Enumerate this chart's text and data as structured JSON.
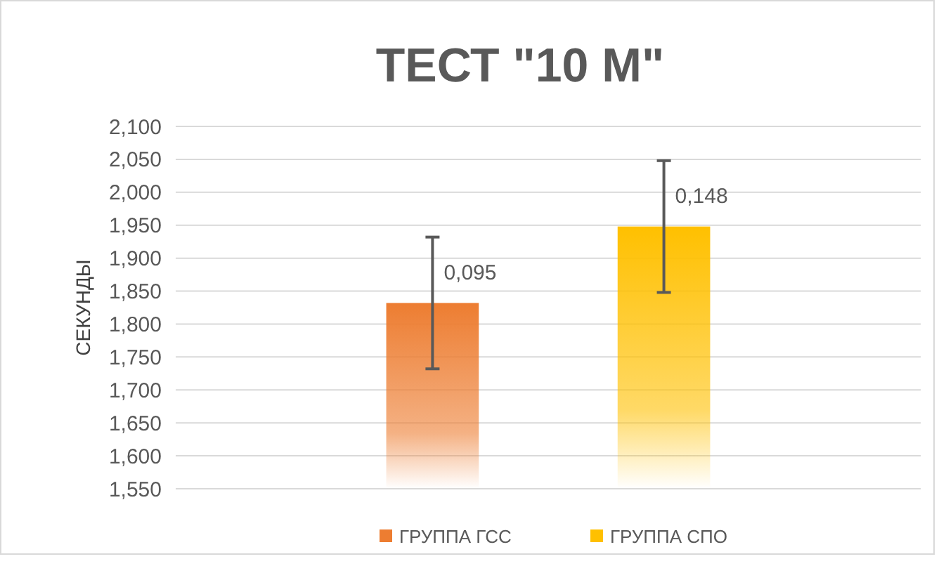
{
  "chart_data": {
    "type": "bar",
    "title": "ТЕСТ \"10 М\"",
    "ylabel": "СЕКУНДЫ",
    "categories": [
      null
    ],
    "series": [
      {
        "name": "ГРУППА  ГСС",
        "color": "#ed7d31",
        "values": [
          1.832
        ],
        "errors": [
          0.1
        ]
      },
      {
        "name": "ГРУППА СПО",
        "color": "#ffc000",
        "values": [
          1.948
        ],
        "errors": [
          0.1
        ]
      }
    ],
    "annotations": [
      "0,095",
      "0,148"
    ],
    "ylim": [
      1.55,
      2.1
    ],
    "yticks": [
      {
        "value": 1.55,
        "label": "1,550"
      },
      {
        "value": 1.6,
        "label": "1,600"
      },
      {
        "value": 1.65,
        "label": "1,650"
      },
      {
        "value": 1.7,
        "label": "1,700"
      },
      {
        "value": 1.75,
        "label": "1,750"
      },
      {
        "value": 1.8,
        "label": "1,800"
      },
      {
        "value": 1.85,
        "label": "1,850"
      },
      {
        "value": 1.9,
        "label": "1,900"
      },
      {
        "value": 1.95,
        "label": "1,950"
      },
      {
        "value": 2.0,
        "label": "2,000"
      },
      {
        "value": 2.05,
        "label": "2,050"
      },
      {
        "value": 2.1,
        "label": "2,100"
      }
    ],
    "grid": true,
    "legend": "bottom"
  }
}
